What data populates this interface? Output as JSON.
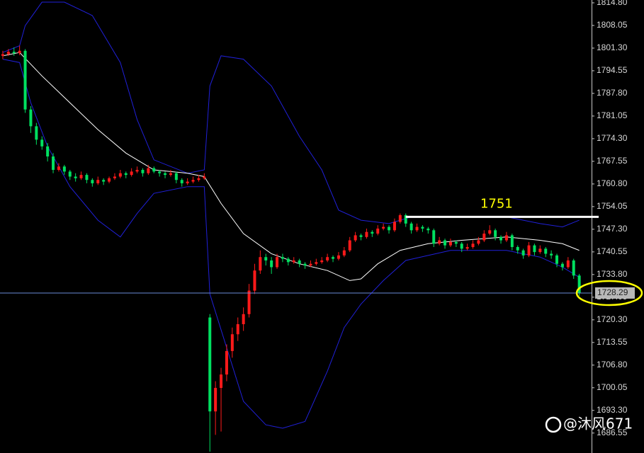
{
  "chart_data": {
    "type": "candlestick",
    "up_color": "#ff1a1a",
    "down_color": "#00e060",
    "xlim": [
      -0.5,
      105.2
    ],
    "ylim": [
      1680.6,
      1815.64
    ],
    "yticks": [
      {
        "value": 1814.8,
        "label": "1814.80"
      },
      1808.05,
      {
        "value": 1801.3,
        "label": "1801.30"
      },
      1794.55,
      {
        "value": 1787.8,
        "label": "1787.80"
      },
      1781.05,
      {
        "value": 1774.3,
        "label": "1774.30"
      },
      1767.55,
      {
        "value": 1760.8,
        "label": "1760.80"
      },
      1754.05,
      {
        "value": 1747.3,
        "label": "1747.30"
      },
      1740.55,
      {
        "value": 1733.8,
        "label": "1733.80"
      },
      1727.05,
      {
        "value": 1720.3,
        "label": "1720.30"
      },
      1713.55,
      {
        "value": 1706.8,
        "label": "1706.80"
      },
      1700.05,
      {
        "value": 1693.3,
        "label": "1693.30"
      },
      1686.55
    ],
    "ohlc": [
      [
        1799,
        1800.5,
        1798,
        1799.5
      ],
      [
        1799.5,
        1801,
        1799,
        1800.2
      ],
      [
        1800.2,
        1801.5,
        1799,
        1799.8
      ],
      [
        1799.8,
        1802,
        1799.2,
        1800.5
      ],
      [
        1800.5,
        1801,
        1782,
        1783
      ],
      [
        1783,
        1784,
        1776,
        1778
      ],
      [
        1778,
        1779,
        1772.5,
        1774
      ],
      [
        1774,
        1775,
        1771,
        1772
      ],
      [
        1772,
        1773,
        1767.5,
        1769
      ],
      [
        1769,
        1770,
        1764,
        1765
      ],
      [
        1765,
        1767,
        1764.5,
        1766
      ],
      [
        1766,
        1766.5,
        1763.5,
        1764.5
      ],
      [
        1764.5,
        1765,
        1762,
        1763
      ],
      [
        1763,
        1764,
        1761.5,
        1762.5
      ],
      [
        1762.5,
        1764.5,
        1762,
        1763.5
      ],
      [
        1763.5,
        1764,
        1761,
        1762
      ],
      [
        1762,
        1762.5,
        1760,
        1761
      ],
      [
        1761,
        1763,
        1760.5,
        1762
      ],
      [
        1762,
        1762.5,
        1760.5,
        1761.5
      ],
      [
        1761.5,
        1763,
        1761,
        1762.5
      ],
      [
        1762.5,
        1764,
        1762,
        1763
      ],
      [
        1763,
        1765,
        1762.5,
        1764
      ],
      [
        1764,
        1764.5,
        1762.5,
        1763.5
      ],
      [
        1763.5,
        1765.5,
        1763,
        1764.5
      ],
      [
        1764.5,
        1766,
        1764,
        1765
      ],
      [
        1765,
        1765.5,
        1763,
        1764
      ],
      [
        1764,
        1766.5,
        1763.5,
        1765.5
      ],
      [
        1765.5,
        1766,
        1764,
        1764.5
      ],
      [
        1764.5,
        1765,
        1763,
        1764
      ],
      [
        1764,
        1764.5,
        1762.5,
        1763.5
      ],
      [
        1763.5,
        1765,
        1763,
        1764
      ],
      [
        1764,
        1764.5,
        1761,
        1762
      ],
      [
        1762,
        1762.5,
        1760,
        1761
      ],
      [
        1761,
        1762.5,
        1760.5,
        1761.5
      ],
      [
        1761.5,
        1763,
        1761,
        1762
      ],
      [
        1762,
        1763.5,
        1761.5,
        1762.5
      ],
      [
        1762.5,
        1764,
        1762,
        1763
      ],
      [
        1721,
        1722,
        1681,
        1693
      ],
      [
        1693,
        1702,
        1686,
        1700
      ],
      [
        1700,
        1706,
        1687,
        1704
      ],
      [
        1704,
        1713,
        1702,
        1711
      ],
      [
        1711,
        1718,
        1709,
        1716
      ],
      [
        1716,
        1721,
        1714,
        1719
      ],
      [
        1719,
        1724,
        1717,
        1722
      ],
      [
        1722,
        1731,
        1721,
        1729
      ],
      [
        1729,
        1737,
        1728,
        1735
      ],
      [
        1735,
        1741,
        1734,
        1739
      ],
      [
        1739,
        1740,
        1736.5,
        1738
      ],
      [
        1738,
        1739,
        1734,
        1736
      ],
      [
        1736,
        1740,
        1735.5,
        1739
      ],
      [
        1739,
        1740,
        1737.5,
        1738.5
      ],
      [
        1738.5,
        1739,
        1736.5,
        1737.5
      ],
      [
        1737.5,
        1739,
        1737,
        1738
      ],
      [
        1738,
        1738.5,
        1736,
        1737
      ],
      [
        1737,
        1737.5,
        1735.5,
        1736.5
      ],
      [
        1736.5,
        1738,
        1736,
        1737
      ],
      [
        1737,
        1738.5,
        1736.5,
        1737.5
      ],
      [
        1737.5,
        1739,
        1737,
        1738
      ],
      [
        1738,
        1740,
        1737.5,
        1739
      ],
      [
        1739,
        1739.5,
        1737.5,
        1738.5
      ],
      [
        1738.5,
        1740.5,
        1738,
        1739.5
      ],
      [
        1739.5,
        1742,
        1739,
        1741
      ],
      [
        1741,
        1745,
        1740.5,
        1744
      ],
      [
        1744,
        1746.5,
        1743.5,
        1745.5
      ],
      [
        1745.5,
        1746,
        1744,
        1745
      ],
      [
        1745,
        1747.5,
        1744.5,
        1746.5
      ],
      [
        1746.5,
        1747,
        1745,
        1746
      ],
      [
        1746,
        1748.5,
        1745.5,
        1747.5
      ],
      [
        1747.5,
        1749,
        1747,
        1748
      ],
      [
        1748,
        1748.5,
        1746,
        1747
      ],
      [
        1747,
        1750.5,
        1746.5,
        1749.5
      ],
      [
        1749.5,
        1752,
        1749,
        1751.5
      ],
      [
        1751.5,
        1752,
        1748,
        1749
      ],
      [
        1749,
        1749.5,
        1746,
        1747
      ],
      [
        1747,
        1749,
        1746.5,
        1748
      ],
      [
        1748,
        1748.5,
        1746.5,
        1747.5
      ],
      [
        1747.5,
        1748,
        1746,
        1747
      ],
      [
        1747,
        1747.5,
        1742,
        1743
      ],
      [
        1743,
        1745,
        1742.5,
        1744
      ],
      [
        1744,
        1744.5,
        1741.5,
        1742.5
      ],
      [
        1742.5,
        1744.5,
        1742,
        1743.5
      ],
      [
        1743.5,
        1744,
        1742,
        1743
      ],
      [
        1743,
        1743.5,
        1740.5,
        1741.5
      ],
      [
        1741.5,
        1743,
        1741,
        1742
      ],
      [
        1742,
        1744,
        1741.5,
        1743
      ],
      [
        1743,
        1745,
        1742.5,
        1744
      ],
      [
        1744,
        1747,
        1743.5,
        1746
      ],
      [
        1746,
        1748.5,
        1745.5,
        1747
      ],
      [
        1747,
        1747.5,
        1744,
        1745
      ],
      [
        1745,
        1745.5,
        1743,
        1744
      ],
      [
        1744,
        1746.5,
        1743.5,
        1745.5
      ],
      [
        1745.5,
        1746,
        1741,
        1742
      ],
      [
        1742,
        1742.5,
        1740,
        1741
      ],
      [
        1741,
        1741.5,
        1738.5,
        1739.5
      ],
      [
        1739.5,
        1743.5,
        1739,
        1742.5
      ],
      [
        1742.5,
        1743,
        1739.5,
        1740.5
      ],
      [
        1740.5,
        1742.5,
        1740,
        1741.5
      ],
      [
        1741.5,
        1742,
        1739,
        1740
      ],
      [
        1740,
        1741,
        1738.5,
        1739.5
      ],
      [
        1739.5,
        1740,
        1736,
        1737
      ],
      [
        1737,
        1737.5,
        1735,
        1736
      ],
      [
        1736,
        1739,
        1735.5,
        1738
      ],
      [
        1738,
        1738.5,
        1732.5,
        1733.5
      ],
      [
        1733.5,
        1734,
        1727.5,
        1728.29
      ]
    ],
    "upper_band": {
      "color": "#2020d8",
      "x": [
        0,
        3,
        4,
        7,
        11,
        16,
        21,
        24,
        27,
        33,
        36,
        37,
        39,
        43,
        48,
        53,
        57,
        60,
        64,
        69,
        73,
        80,
        90,
        96,
        100,
        103
      ],
      "values": [
        1800,
        1802,
        1808,
        1815,
        1815,
        1811,
        1797,
        1780,
        1768,
        1764,
        1765,
        1790,
        1799,
        1798,
        1790,
        1775,
        1765,
        1753,
        1750,
        1749,
        1751,
        1751,
        1751,
        1749,
        1748,
        1750
      ]
    },
    "lower_band": {
      "color": "#2020d8",
      "x": [
        0,
        3,
        5,
        8,
        12,
        17,
        21,
        24,
        27,
        33,
        36,
        37,
        40,
        43,
        47,
        50,
        54,
        58,
        61,
        64,
        68,
        72,
        80,
        90,
        96,
        100,
        103
      ],
      "values": [
        1798,
        1797,
        1785,
        1772,
        1760,
        1750,
        1745,
        1752,
        1758,
        1760,
        1760,
        1728,
        1712,
        1696,
        1689,
        1688,
        1690,
        1705,
        1718,
        1725,
        1732,
        1738,
        1741,
        1741,
        1739,
        1736,
        1733
      ]
    },
    "middle_band": {
      "color": "#ffffff",
      "x": [
        0,
        3,
        7,
        12,
        17,
        22,
        27,
        33,
        36,
        39,
        43,
        48,
        53,
        58,
        62,
        64,
        67,
        71,
        76,
        82,
        90,
        96,
        100,
        103
      ],
      "values": [
        1799,
        1800,
        1793,
        1785,
        1777,
        1770,
        1765,
        1764,
        1763,
        1755,
        1746,
        1740,
        1737,
        1735,
        1732,
        1732.5,
        1737,
        1741,
        1743,
        1744,
        1745,
        1744,
        1743,
        1741
      ]
    },
    "level": {
      "value": 1751,
      "label": "1751",
      "x_from": 72
    },
    "current_price": {
      "value": 1728.29,
      "label": "1728.29"
    },
    "watermark": "@沐风671"
  }
}
